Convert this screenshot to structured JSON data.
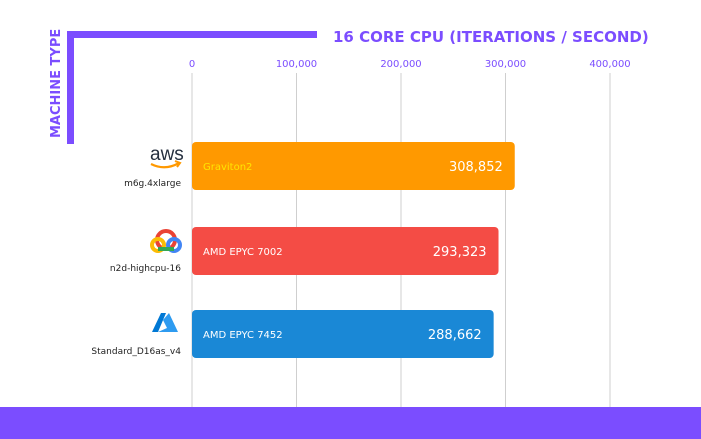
{
  "chart_data": {
    "type": "bar",
    "orientation": "horizontal",
    "title": "16 CORE CPU (ITERATIONS / SECOND)",
    "ylabel": "MACHINE TYPE",
    "xlim": [
      0,
      400000
    ],
    "x_ticks": [
      0,
      100000,
      200000,
      300000,
      400000
    ],
    "x_tick_labels": [
      "0",
      "100,000",
      "200,000",
      "300,000",
      "400,000"
    ],
    "grid": true,
    "categories": [
      "m6g.4xlarge",
      "n2d-highcpu-16",
      "Standard_D16as_v4"
    ],
    "bar_labels": [
      "Graviton2",
      "AMD EPYC 7002",
      "AMD EPYC 7452"
    ],
    "value_labels": [
      "308,852",
      "293,323",
      "288,662"
    ],
    "values": [
      308852,
      293323,
      288662
    ],
    "provider_icons": [
      "aws-logo-icon",
      "google-cloud-logo-icon",
      "azure-logo-icon"
    ],
    "provider_logo_text": [
      "aws"
    ],
    "bar_colors": [
      "#ff9900",
      "#f44c45",
      "#1a88d6"
    ],
    "bar_label_colors": [
      "#ffe500",
      "#ffffff",
      "#ffffff"
    ],
    "accent_color": "#7b4dff"
  }
}
